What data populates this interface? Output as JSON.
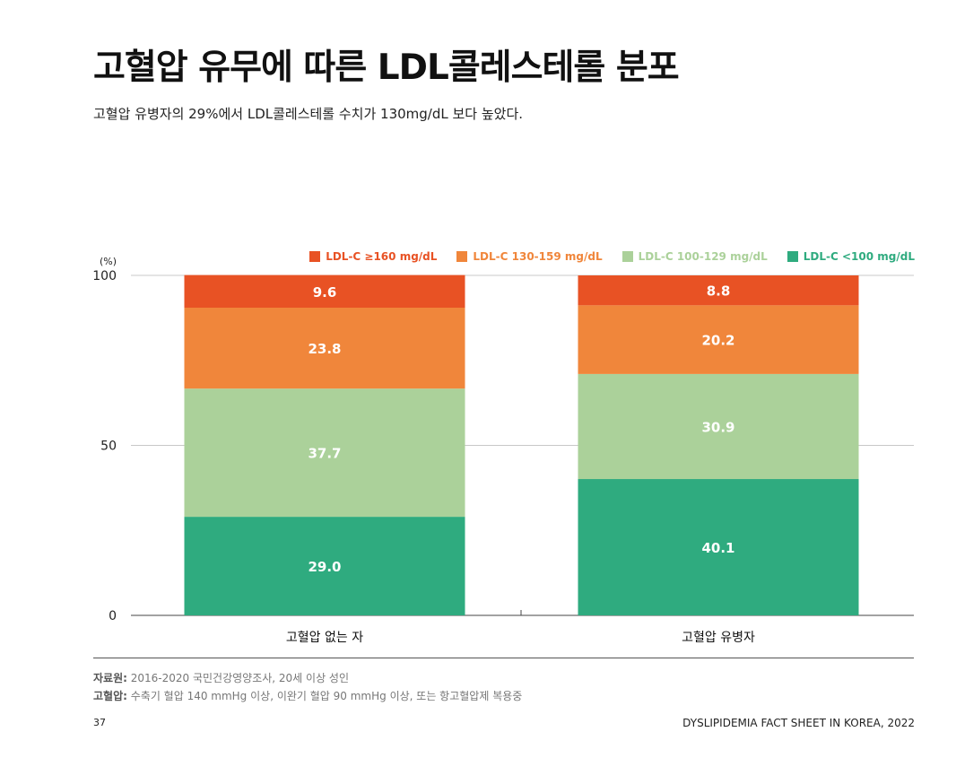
{
  "page": {
    "title": "고혈압 유무에 따른 LDL콜레스테롤 분포",
    "subtitle": "고혈압 유병자의 29%에서 LDL콜레스테롤 수치가 130mg/dL 보다 높았다.",
    "source_label": "자료원:",
    "source_text": " 2016-2020  국민건강영양조사, 20세 이상 성인",
    "definition_label": "고혈압:",
    "definition_text": " 수축기 혈압 140 mmHg 이상, 이완기 혈압 90 mmHg 이상, 또는 항고혈압제 복용중",
    "page_number": "37",
    "footer_right": "DYSLIPIDEMIA FACT SHEET IN KOREA, 2022"
  },
  "chart_data": {
    "type": "bar",
    "stacked": true,
    "ylabel": "(%)",
    "ylim": [
      0,
      100
    ],
    "yticks": [
      "0",
      "50",
      "100"
    ],
    "grid": true,
    "legend_position": "top-right",
    "categories": [
      "고혈압 없는 자",
      "고혈압 유병자"
    ],
    "series": [
      {
        "name": "LDL-C <100 mg/dL",
        "color": "#2fab7f",
        "values": [
          29.0,
          40.1
        ],
        "labels": [
          "29.0",
          "40.1"
        ]
      },
      {
        "name": "LDL-C 100-129 mg/dL",
        "color": "#abd19a",
        "values": [
          37.7,
          30.9
        ],
        "labels": [
          "37.7",
          "30.9"
        ]
      },
      {
        "name": "LDL-C 130-159 mg/dL",
        "color": "#f0863b",
        "values": [
          23.8,
          20.2
        ],
        "labels": [
          "23.8",
          "20.2"
        ]
      },
      {
        "name": "LDL-C ≥160 mg/dL",
        "color": "#e85224",
        "values": [
          9.6,
          8.8
        ],
        "labels": [
          "9.6",
          "8.8"
        ]
      }
    ],
    "legend_order": [
      3,
      2,
      1,
      0
    ]
  }
}
